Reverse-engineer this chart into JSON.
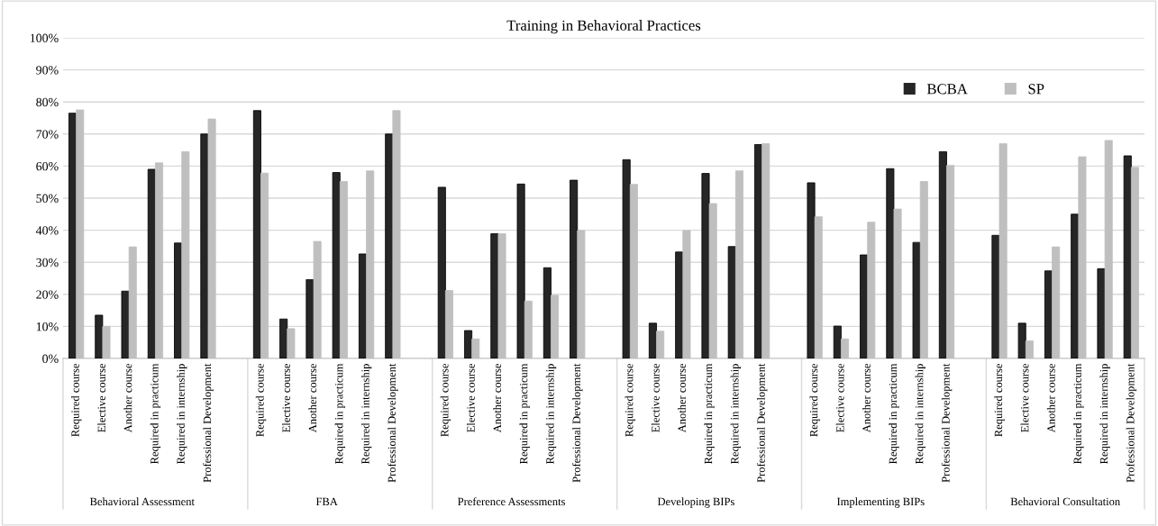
{
  "chart_data": {
    "type": "bar",
    "title": "Training in Behavioral Practices",
    "categories": [
      "Required course",
      "Elective course",
      "Another course",
      "Required in practicum",
      "Required in internship",
      "Professional Development",
      null,
      "Required course",
      "Elective course",
      "Another course",
      "Required in practicum",
      "Required in internship",
      "Professional Development",
      null,
      "Required course",
      "Elective course",
      "Another course",
      "Required in practicum",
      "Required in internship",
      "Professional Development",
      null,
      "Required course",
      "Elective course",
      "Another course",
      "Required in practicum",
      "Required in internship",
      "Professional Development",
      null,
      "Required course",
      "Elective course",
      "Another course",
      "Required in practicum",
      "Required in internship",
      "Professional Development",
      null,
      "Required course",
      "Elective course",
      "Another course",
      "Required in practicum",
      "Required in internship",
      "Professional Development"
    ],
    "series": [
      {
        "name": "BCBA",
        "color": "#262626",
        "values": [
          76.5,
          13.5,
          21,
          59,
          36,
          70,
          null,
          77.3,
          12.3,
          24.6,
          58,
          32.6,
          70,
          null,
          53.4,
          8.7,
          38.9,
          54.4,
          28.3,
          55.6,
          null,
          62,
          11,
          33.2,
          57.7,
          34.9,
          66.7,
          null,
          54.8,
          10.1,
          32.3,
          59.2,
          36.2,
          64.5,
          null,
          38.4,
          11,
          27.3,
          45,
          28,
          63.2
        ]
      },
      {
        "name": "SP",
        "color": "#bfbfbf",
        "values": [
          77.5,
          10,
          34.8,
          61,
          64.5,
          74.7,
          null,
          57.8,
          9.3,
          36.5,
          55.2,
          58.5,
          77.3,
          null,
          21.2,
          6.1,
          38.9,
          17.9,
          19.7,
          39.9,
          null,
          54.3,
          8.5,
          39.9,
          48.3,
          58.5,
          67,
          null,
          44.2,
          6.1,
          42.5,
          46.6,
          55.2,
          60.2,
          null,
          67,
          5.5,
          34.8,
          62.9,
          68,
          59.6
        ]
      }
    ],
    "annotations": [
      "Behavioral Assessment",
      "FBA",
      "Preference Assessments",
      "Developing BIPs",
      "Implementing BIPs",
      "Behavioral Consultation"
    ],
    "ylim": [
      0,
      100
    ],
    "yticks": [
      {
        "value": 0,
        "label": "0%"
      },
      {
        "value": 10,
        "label": "10%"
      },
      {
        "value": 20,
        "label": "20%"
      },
      {
        "value": 30,
        "label": "30%"
      },
      {
        "value": 40,
        "label": "40%"
      },
      {
        "value": 50,
        "label": "50%"
      },
      {
        "value": 60,
        "label": "60%"
      },
      {
        "value": 70,
        "label": "70%"
      },
      {
        "value": 80,
        "label": "80%"
      },
      {
        "value": 90,
        "label": "90%"
      },
      {
        "value": 100,
        "label": "100%"
      }
    ],
    "grid": "y",
    "legend": "top right"
  }
}
